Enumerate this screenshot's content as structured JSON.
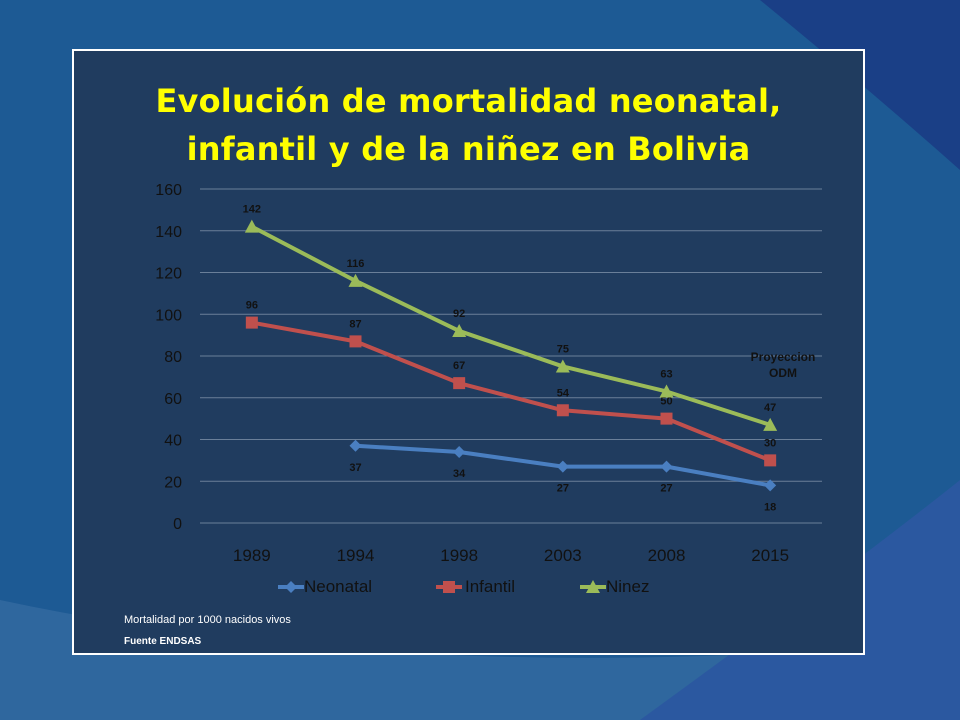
{
  "chart_data": {
    "type": "line",
    "title_lines": [
      "Evolución de mortalidad neonatal,",
      "infantil y de la niñez en Bolivia"
    ],
    "categories": [
      "1989",
      "1994",
      "1998",
      "2003",
      "2008",
      "2015"
    ],
    "ylim": [
      0,
      160
    ],
    "yticks": [
      "0",
      "20",
      "40",
      "60",
      "80",
      "100",
      "120",
      "140",
      "160"
    ],
    "grid": true,
    "legend_position": "bottom",
    "series": [
      {
        "name": "Neonatal",
        "color": "#4a7fc1",
        "marker": "diamond",
        "values": [
          null,
          37,
          34,
          27,
          27,
          18
        ],
        "labels": [
          "",
          "37",
          "34",
          "27",
          "27",
          "18"
        ]
      },
      {
        "name": "Infantil",
        "color": "#c0504d",
        "marker": "square",
        "values": [
          96,
          87,
          67,
          54,
          50,
          30
        ],
        "labels": [
          "96",
          "87",
          "67",
          "54",
          "50",
          "30"
        ]
      },
      {
        "name": "Ninez",
        "color": "#9bbb59",
        "marker": "triangle",
        "values": [
          142,
          116,
          92,
          75,
          63,
          47
        ],
        "labels": [
          "142",
          "116",
          "92",
          "75",
          "63",
          "47"
        ]
      }
    ],
    "annotation": "Proyeccion ODM"
  },
  "notes": {
    "unit": "Mortalidad  por 1000 nacidos vivos",
    "source": "Fuente ENDSAS"
  },
  "colors": {
    "background": "#1d5a94",
    "panel": "#203c5f",
    "title": "#ffff00"
  }
}
